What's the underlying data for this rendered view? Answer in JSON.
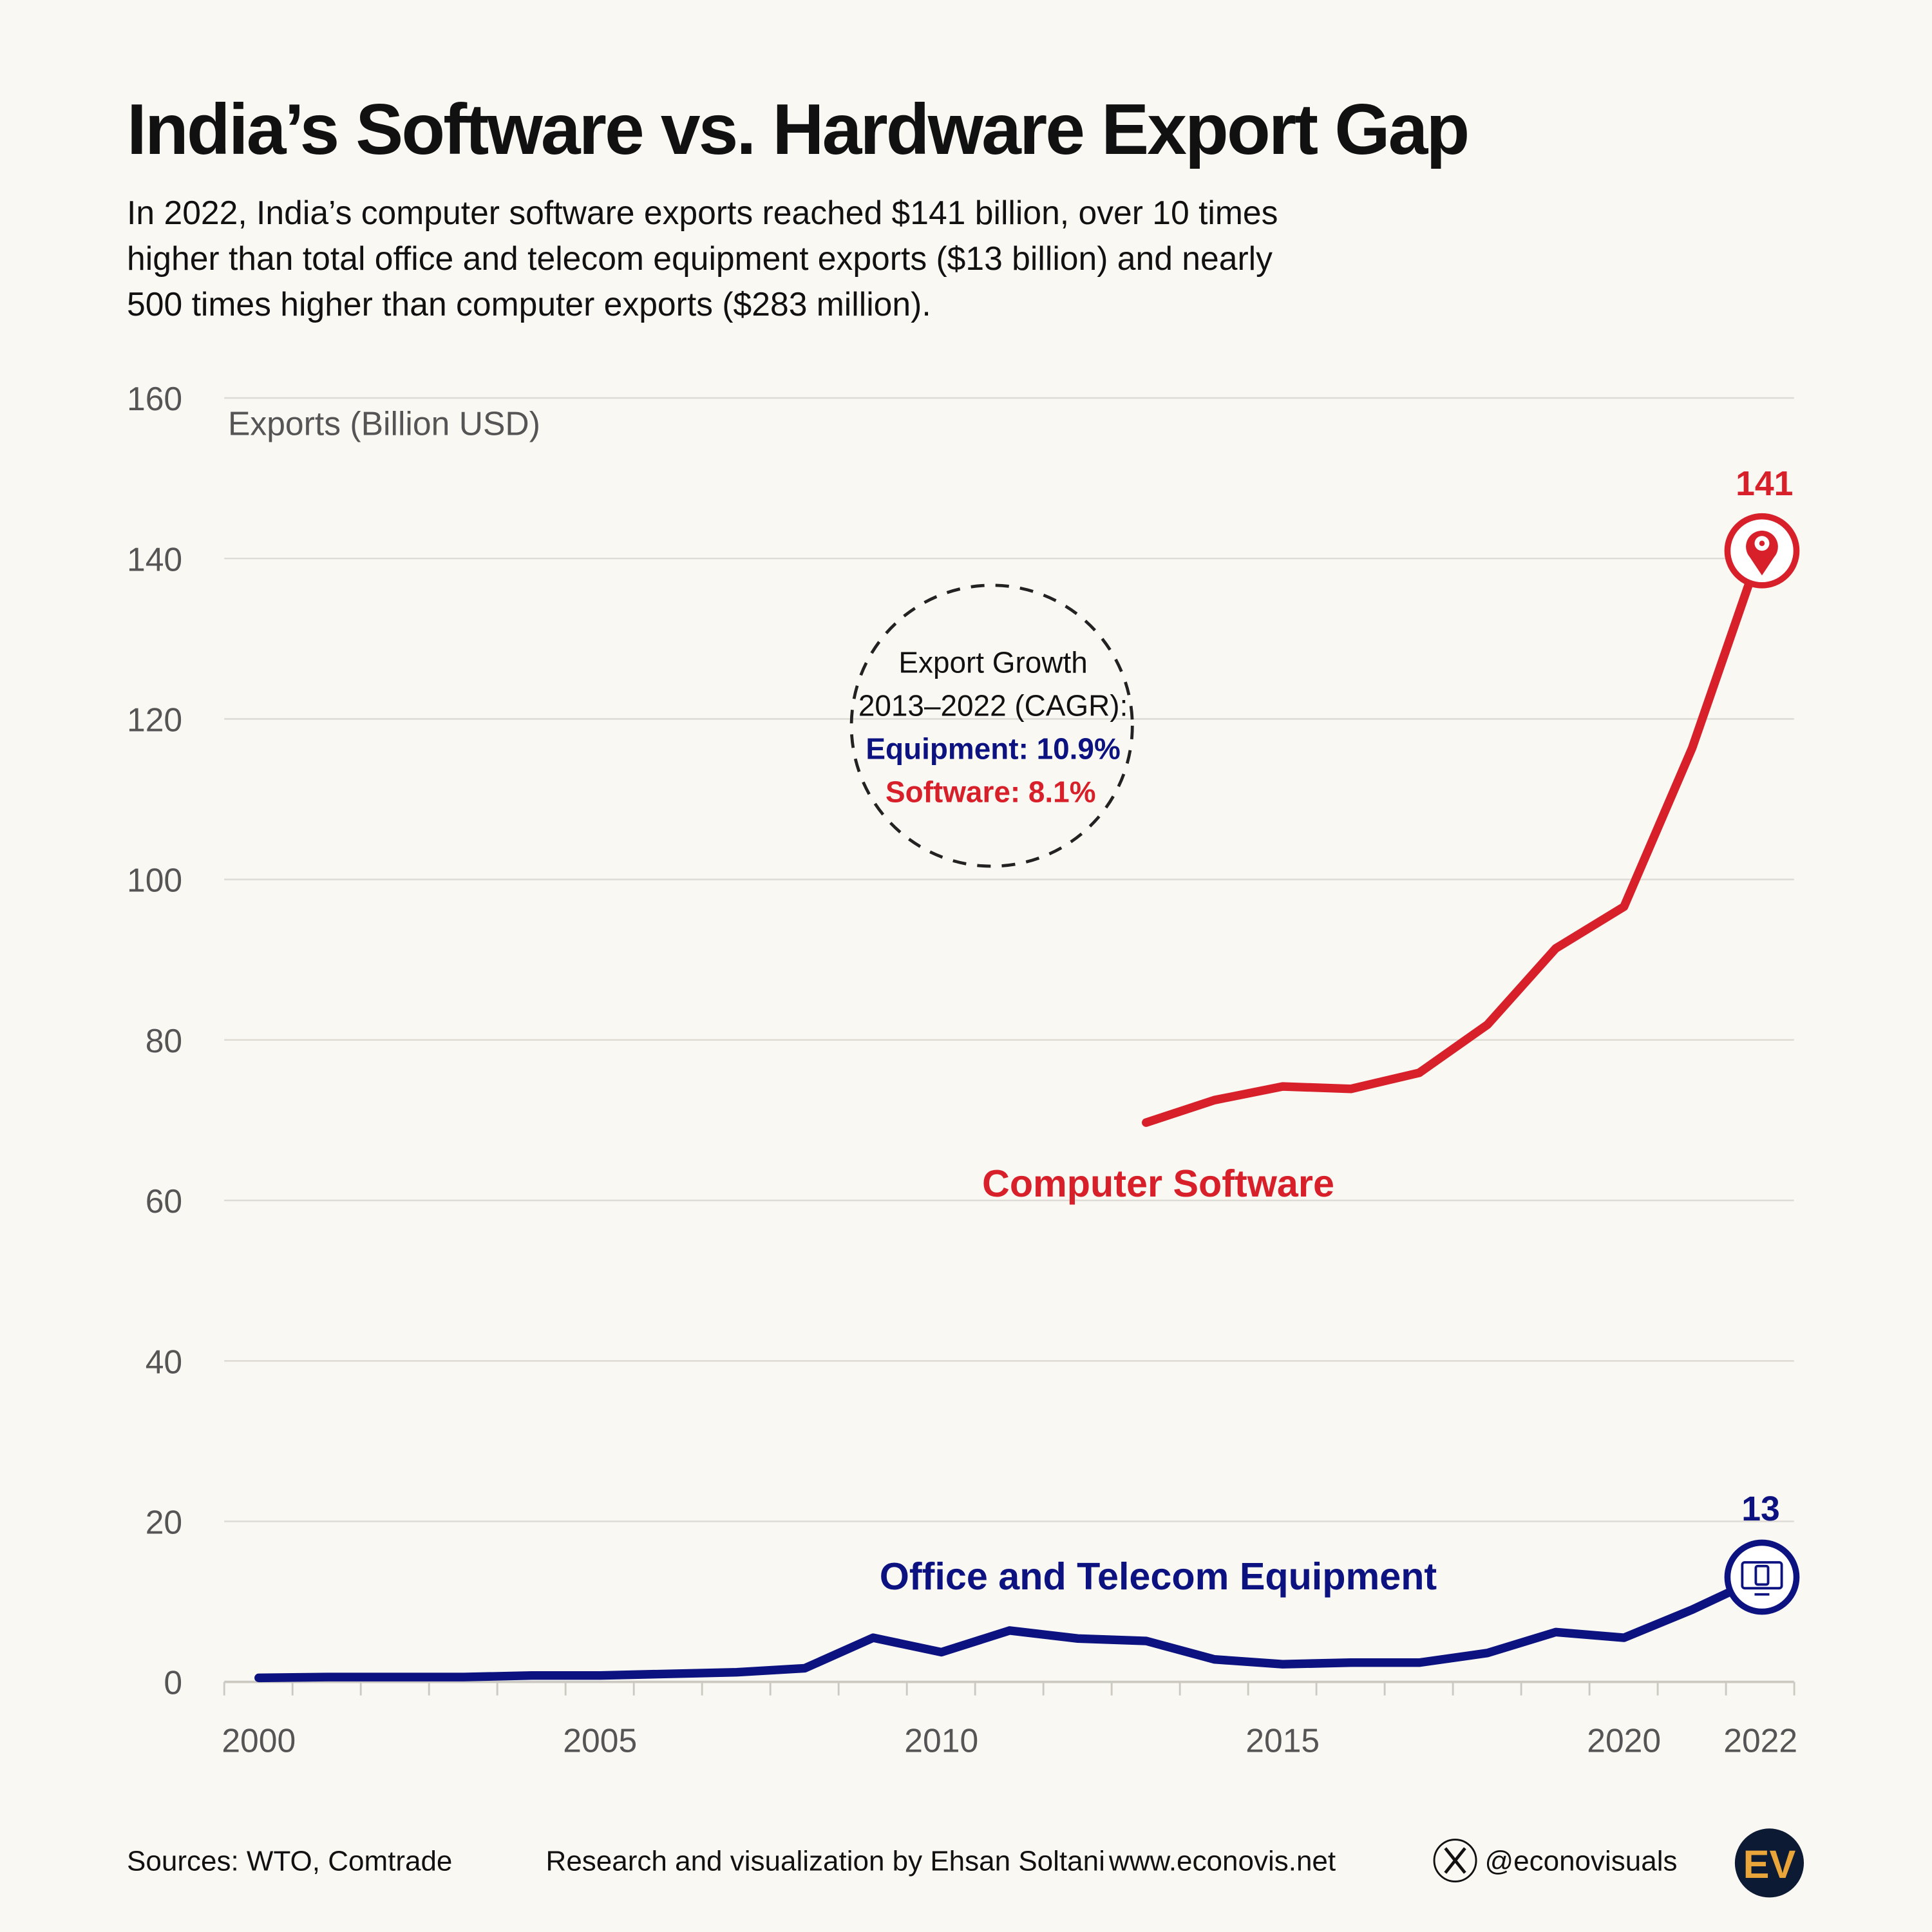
{
  "title": "India’s Software vs. Hardware Export Gap",
  "subtitle_lines": [
    "In 2022, India’s computer software exports reached $141 billion, over 10 times",
    "higher than total office and telecom equipment exports ($13 billion) and nearly",
    "500 times higher than computer exports ($283 million)."
  ],
  "chart_data": {
    "type": "line",
    "ylabel": "Exports (Billion USD)",
    "xlabel": "",
    "ylim": [
      0,
      160
    ],
    "xlim": [
      2000,
      2022
    ],
    "yticks": [
      0,
      20,
      40,
      60,
      80,
      100,
      120,
      140,
      160
    ],
    "xticks": [
      2000,
      2005,
      2010,
      2015,
      2020,
      2022
    ],
    "grid": true,
    "series": [
      {
        "name": "Computer Software",
        "color": "#d7202a",
        "x": [
          2013,
          2014,
          2015,
          2016,
          2017,
          2018,
          2019,
          2020,
          2021,
          2022
        ],
        "values": [
          69.7,
          72.5,
          74.2,
          73.9,
          75.9,
          81.9,
          91.4,
          96.6,
          116.4,
          141
        ],
        "end_label": "141",
        "end_icon": "gear-pin-icon"
      },
      {
        "name": "Office and Telecom Equipment",
        "color": "#0c1280",
        "x": [
          2000,
          2001,
          2002,
          2003,
          2004,
          2005,
          2006,
          2007,
          2008,
          2009,
          2010,
          2011,
          2012,
          2013,
          2014,
          2015,
          2016,
          2017,
          2018,
          2019,
          2020,
          2021,
          2022
        ],
        "values": [
          0.5,
          0.6,
          0.6,
          0.6,
          0.8,
          0.8,
          1.0,
          1.2,
          1.7,
          5.5,
          3.7,
          6.4,
          5.4,
          5.1,
          2.8,
          2.2,
          2.4,
          2.4,
          3.6,
          6.2,
          5.5,
          9.0,
          13
        ],
        "end_label": "13",
        "end_icon": "computer-monitor-icon"
      }
    ],
    "annotation": {
      "line1": "Export Growth",
      "line2": "2013–2022 (CAGR):",
      "equipment": "Equipment: 10.9%",
      "software": "Software: 8.1%"
    }
  },
  "footer": {
    "sources": "Sources: WTO, Comtrade",
    "credit": "Research and visualization by Ehsan Soltani",
    "website": "www.econovis.net",
    "handle": "@econovisuals",
    "logo_text": "EV",
    "logo_bg": "#0d1a33",
    "logo_fg": "#e9a53a"
  }
}
